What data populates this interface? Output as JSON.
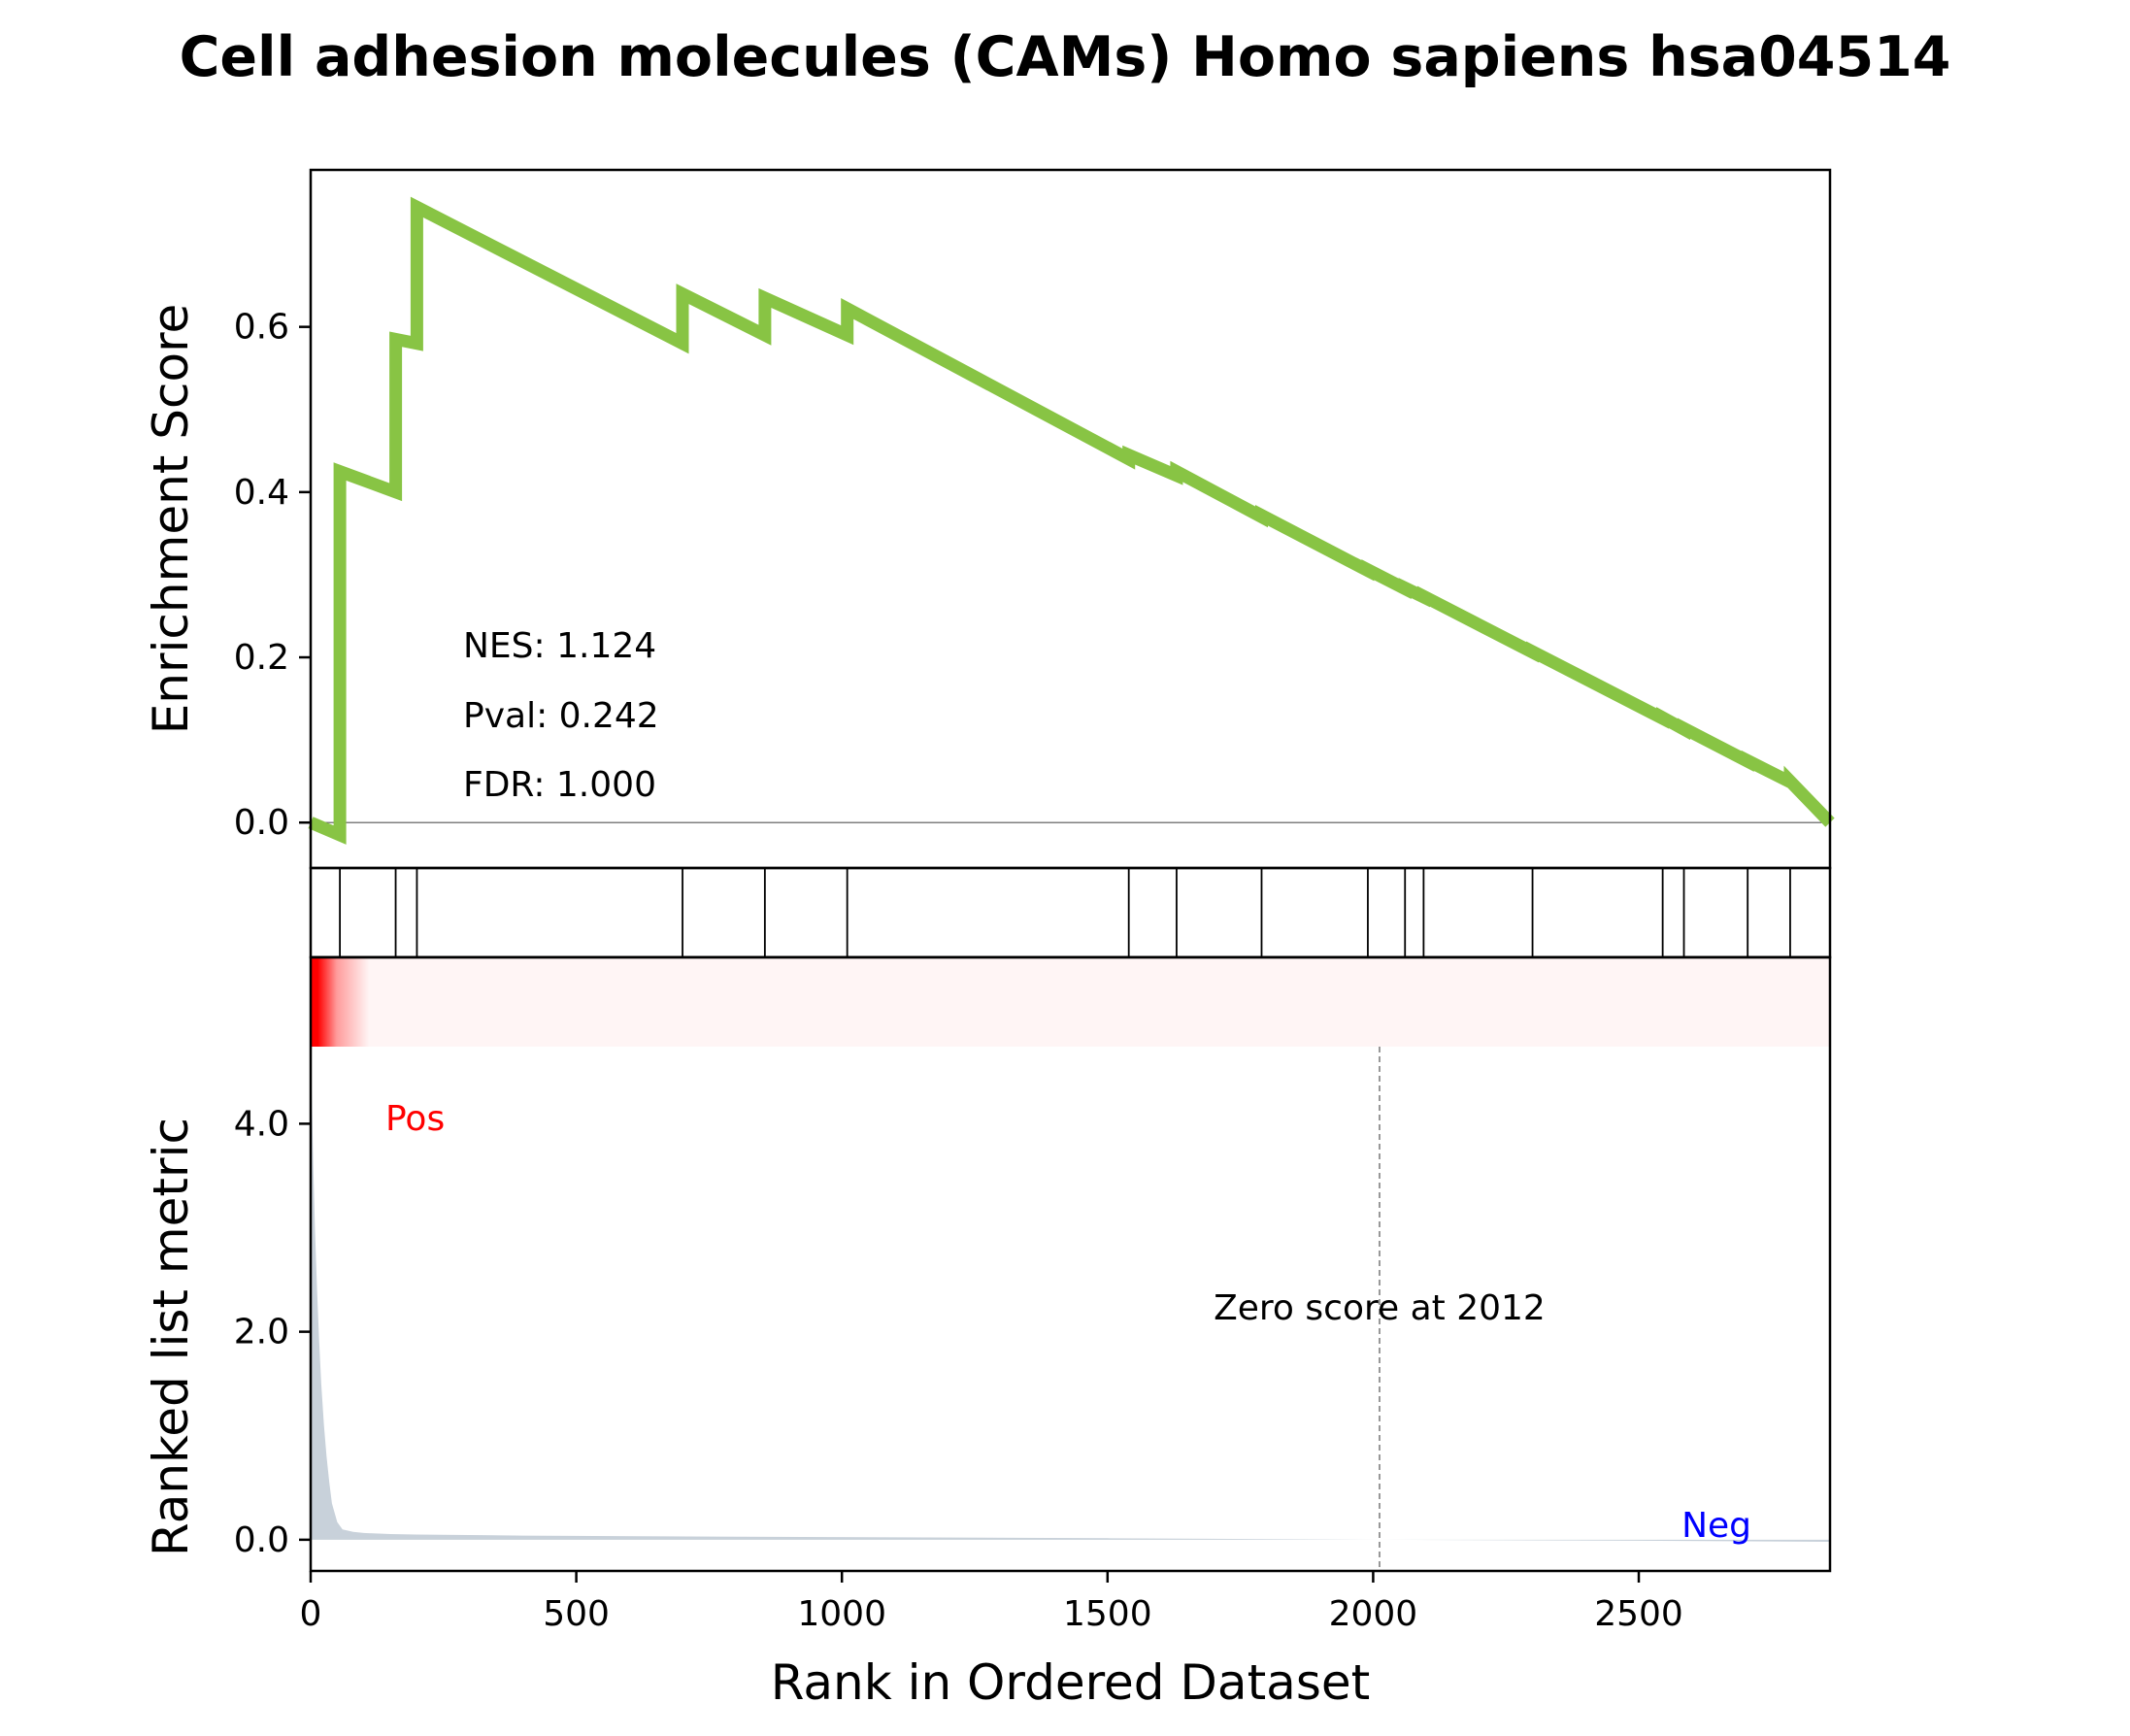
{
  "chart_data": {
    "type": "line",
    "title": "Cell adhesion molecules (CAMs) Homo sapiens hsa04514",
    "xlabel": "Rank in Ordered Dataset",
    "xlim": [
      0,
      2860
    ],
    "xticks": [
      0,
      500,
      1000,
      1500,
      2000,
      2500
    ],
    "es_panel": {
      "ylabel": "Enrichment Score",
      "ylim": [
        -0.055,
        0.79
      ],
      "yticks": [
        0.0,
        0.2,
        0.4,
        0.6
      ],
      "ytick_labels": [
        "0.0",
        "0.2",
        "0.4",
        "0.6"
      ],
      "line_color": "#88c444",
      "zero_line": true,
      "running_es": {
        "x": [
          0,
          55,
          55,
          160,
          160,
          200,
          200,
          700,
          700,
          855,
          855,
          1010,
          1010,
          1540,
          1540,
          1630,
          1630,
          1790,
          1790,
          1990,
          1990,
          2060,
          2060,
          2095,
          2095,
          2300,
          2300,
          2545,
          2545,
          2585,
          2585,
          2705,
          2705,
          2785,
          2785,
          2860
        ],
        "y": [
          0.0,
          -0.015,
          0.425,
          0.4,
          0.585,
          0.58,
          0.745,
          0.58,
          0.64,
          0.59,
          0.635,
          0.59,
          0.622,
          0.44,
          0.445,
          0.42,
          0.425,
          0.37,
          0.372,
          0.305,
          0.306,
          0.283,
          0.284,
          0.273,
          0.274,
          0.206,
          0.207,
          0.126,
          0.127,
          0.113,
          0.114,
          0.074,
          0.075,
          0.049,
          0.05,
          0.0
        ]
      },
      "stats": {
        "nes": "NES: 1.124",
        "pval": "Pval: 0.242",
        "fdr": "FDR: 1.000"
      }
    },
    "hits_panel": {
      "hit_positions": [
        55,
        160,
        200,
        700,
        855,
        1010,
        1540,
        1630,
        1790,
        1990,
        2060,
        2095,
        2300,
        2545,
        2585,
        2705,
        2785
      ]
    },
    "heatmap_panel": {
      "description_colors": {
        "high": "#ff0000",
        "low": "#fff5f5"
      },
      "red_extent_rank": 110
    },
    "rank_panel": {
      "ylabel": "Ranked list metric",
      "ylim": [
        -0.3,
        5.6
      ],
      "yticks": [
        0.0,
        2.0,
        4.0
      ],
      "ytick_labels": [
        "0.0",
        "2.0",
        "4.0"
      ],
      "fill_color": "#c8d1da",
      "metric": {
        "x": [
          0,
          2,
          5,
          8,
          12,
          16,
          20,
          25,
          30,
          35,
          40,
          50,
          60,
          80,
          100,
          150,
          200,
          400,
          800,
          1500,
          2012,
          2500,
          2860
        ],
        "y": [
          5.0,
          4.3,
          3.6,
          3.0,
          2.4,
          1.9,
          1.5,
          1.1,
          0.8,
          0.55,
          0.35,
          0.17,
          0.1,
          0.075,
          0.065,
          0.055,
          0.05,
          0.04,
          0.03,
          0.015,
          0.0,
          -0.01,
          -0.02
        ]
      },
      "pos_label": "Pos",
      "neg_label": "Neg",
      "pos_color": "#ff0000",
      "neg_color": "#0000ff",
      "zero_cross": 2012,
      "zero_label": "Zero score at 2012"
    }
  }
}
